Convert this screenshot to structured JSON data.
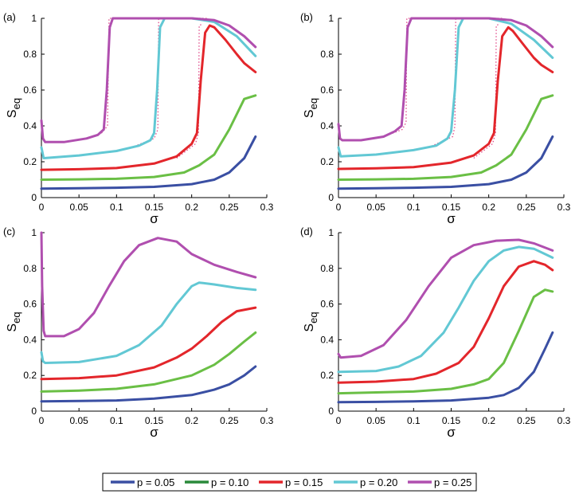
{
  "figure": {
    "colors": {
      "p005": "#3a4fa3",
      "p010": "#6abf45",
      "p015": "#e3262b",
      "p020": "#62c8d4",
      "p025": "#b04faf",
      "legend_p010": "#2a8a3a",
      "dotted": "#e04a8a"
    },
    "legend": [
      {
        "label": "p = 0.05",
        "color": "#3a4fa3"
      },
      {
        "label": "p = 0.10",
        "color": "#2a8a3a"
      },
      {
        "label": "p = 0.15",
        "color": "#e3262b"
      },
      {
        "label": "p = 0.20",
        "color": "#62c8d4"
      },
      {
        "label": "p = 0.25",
        "color": "#b04faf"
      }
    ]
  },
  "chart_data": [
    {
      "panel": "(a)",
      "type": "line",
      "xlabel": "σ",
      "ylabel_main": "S",
      "ylabel_sub": "eq",
      "xlim": [
        0,
        0.3
      ],
      "ylim": [
        0,
        1
      ],
      "xticks": [
        "0",
        "0.05",
        "0.1",
        "0.15",
        "0.2",
        "0.25",
        "0.3"
      ],
      "yticks": [
        "0",
        "0.2",
        "0.4",
        "0.6",
        "0.8",
        "1"
      ],
      "series": [
        {
          "name": "p = 0.05",
          "x": [
            0,
            0.05,
            0.1,
            0.15,
            0.2,
            0.23,
            0.25,
            0.27,
            0.285
          ],
          "y": [
            0.05,
            0.052,
            0.055,
            0.06,
            0.075,
            0.1,
            0.14,
            0.22,
            0.34
          ]
        },
        {
          "name": "p = 0.10",
          "x": [
            0,
            0.05,
            0.1,
            0.15,
            0.19,
            0.21,
            0.23,
            0.25,
            0.27,
            0.285
          ],
          "y": [
            0.1,
            0.102,
            0.105,
            0.115,
            0.14,
            0.18,
            0.24,
            0.38,
            0.55,
            0.57
          ]
        },
        {
          "name": "p = 0.15",
          "x": [
            0,
            0.05,
            0.1,
            0.15,
            0.18,
            0.2,
            0.207,
            0.212,
            0.218,
            0.224,
            0.23,
            0.245,
            0.26,
            0.27,
            0.285
          ],
          "y": [
            0.155,
            0.158,
            0.165,
            0.19,
            0.23,
            0.3,
            0.36,
            0.65,
            0.92,
            0.96,
            0.95,
            0.88,
            0.8,
            0.75,
            0.7
          ]
        },
        {
          "name": "p = 0.20",
          "x": [
            0,
            0.003,
            0.05,
            0.1,
            0.13,
            0.145,
            0.15,
            0.154,
            0.158,
            0.164,
            0.17,
            0.2,
            0.23,
            0.26,
            0.285
          ],
          "y": [
            0.28,
            0.22,
            0.235,
            0.26,
            0.29,
            0.32,
            0.36,
            0.6,
            0.95,
            1.0,
            1.0,
            1.0,
            0.98,
            0.9,
            0.79
          ]
        },
        {
          "name": "p = 0.25",
          "x": [
            0,
            0.002,
            0.005,
            0.03,
            0.06,
            0.075,
            0.083,
            0.087,
            0.091,
            0.095,
            0.1,
            0.15,
            0.2,
            0.23,
            0.25,
            0.27,
            0.285
          ],
          "y": [
            0.43,
            0.33,
            0.31,
            0.31,
            0.33,
            0.35,
            0.38,
            0.6,
            0.95,
            1.0,
            1.0,
            1.0,
            1.0,
            0.99,
            0.96,
            0.9,
            0.84
          ]
        }
      ],
      "dotted": [
        {
          "x": [
            0.06,
            0.08,
            0.088,
            0.09,
            0.1,
            0.15,
            0.2,
            0.22
          ],
          "y": [
            0.33,
            0.36,
            0.4,
            1.0,
            1.0,
            1.0,
            1.0,
            1.0
          ]
        },
        {
          "x": [
            0.12,
            0.15,
            0.155,
            0.156,
            0.165,
            0.2
          ],
          "y": [
            0.28,
            0.33,
            0.38,
            1.0,
            1.0,
            1.0
          ]
        },
        {
          "x": [
            0.18,
            0.205,
            0.209,
            0.21,
            0.215
          ],
          "y": [
            0.22,
            0.3,
            0.36,
            0.96,
            0.97
          ]
        }
      ]
    },
    {
      "panel": "(b)",
      "type": "line",
      "xlabel": "σ",
      "ylabel_main": "S",
      "ylabel_sub": "eq",
      "xlim": [
        0,
        0.3
      ],
      "ylim": [
        0,
        1
      ],
      "xticks": [
        "0",
        "0.05",
        "0.1",
        "0.15",
        "0.2",
        "0.25",
        "0.3"
      ],
      "yticks": [
        "0",
        "0.2",
        "0.4",
        "0.6",
        "0.8",
        "1"
      ],
      "series": [
        {
          "name": "p = 0.05",
          "x": [
            0,
            0.05,
            0.1,
            0.15,
            0.2,
            0.23,
            0.25,
            0.27,
            0.285
          ],
          "y": [
            0.05,
            0.052,
            0.055,
            0.06,
            0.075,
            0.1,
            0.14,
            0.22,
            0.34
          ]
        },
        {
          "name": "p = 0.10",
          "x": [
            0,
            0.05,
            0.1,
            0.15,
            0.19,
            0.21,
            0.23,
            0.25,
            0.27,
            0.285
          ],
          "y": [
            0.1,
            0.102,
            0.105,
            0.115,
            0.14,
            0.18,
            0.24,
            0.38,
            0.55,
            0.57
          ]
        },
        {
          "name": "p = 0.15",
          "x": [
            0,
            0.05,
            0.1,
            0.15,
            0.18,
            0.2,
            0.207,
            0.212,
            0.218,
            0.226,
            0.232,
            0.245,
            0.26,
            0.27,
            0.285
          ],
          "y": [
            0.16,
            0.163,
            0.17,
            0.195,
            0.235,
            0.3,
            0.36,
            0.65,
            0.9,
            0.95,
            0.93,
            0.86,
            0.78,
            0.74,
            0.7
          ]
        },
        {
          "name": "p = 0.20",
          "x": [
            0,
            0.003,
            0.05,
            0.1,
            0.13,
            0.145,
            0.15,
            0.155,
            0.16,
            0.166,
            0.172,
            0.2,
            0.23,
            0.26,
            0.285
          ],
          "y": [
            0.28,
            0.23,
            0.24,
            0.265,
            0.29,
            0.33,
            0.37,
            0.6,
            0.95,
            1.0,
            1.0,
            1.0,
            0.97,
            0.88,
            0.78
          ]
        },
        {
          "name": "p = 0.25",
          "x": [
            0,
            0.002,
            0.005,
            0.03,
            0.06,
            0.075,
            0.084,
            0.088,
            0.092,
            0.097,
            0.1,
            0.15,
            0.2,
            0.23,
            0.25,
            0.27,
            0.285
          ],
          "y": [
            0.41,
            0.33,
            0.32,
            0.32,
            0.34,
            0.37,
            0.4,
            0.6,
            0.95,
            1.0,
            1.0,
            1.0,
            1.0,
            0.99,
            0.96,
            0.9,
            0.84
          ]
        }
      ],
      "dotted": [
        {
          "x": [
            0.06,
            0.085,
            0.09,
            0.091,
            0.1,
            0.15,
            0.2,
            0.22
          ],
          "y": [
            0.34,
            0.38,
            0.42,
            1.0,
            1.0,
            1.0,
            1.0,
            1.0
          ]
        },
        {
          "x": [
            0.12,
            0.152,
            0.155,
            0.156,
            0.17,
            0.2
          ],
          "y": [
            0.28,
            0.34,
            0.4,
            1.0,
            1.0,
            1.0
          ]
        },
        {
          "x": [
            0.18,
            0.205,
            0.209,
            0.21,
            0.215
          ],
          "y": [
            0.22,
            0.3,
            0.36,
            0.96,
            0.97
          ]
        }
      ]
    },
    {
      "panel": "(c)",
      "type": "line",
      "xlabel": "σ",
      "ylabel_main": "S",
      "ylabel_sub": "eq",
      "xlim": [
        0,
        0.3
      ],
      "ylim": [
        0,
        1
      ],
      "xticks": [
        "0",
        "0.05",
        "0.1",
        "0.15",
        "0.2",
        "0.25",
        "0.3"
      ],
      "yticks": [
        "0",
        "0.2",
        "0.4",
        "0.6",
        "0.8",
        "1"
      ],
      "series": [
        {
          "name": "p = 0.05",
          "x": [
            0,
            0.05,
            0.1,
            0.15,
            0.2,
            0.23,
            0.25,
            0.27,
            0.285
          ],
          "y": [
            0.055,
            0.057,
            0.06,
            0.07,
            0.09,
            0.12,
            0.15,
            0.2,
            0.25
          ]
        },
        {
          "name": "p = 0.10",
          "x": [
            0,
            0.05,
            0.1,
            0.15,
            0.2,
            0.23,
            0.25,
            0.27,
            0.285
          ],
          "y": [
            0.11,
            0.115,
            0.125,
            0.15,
            0.2,
            0.26,
            0.32,
            0.39,
            0.44
          ]
        },
        {
          "name": "p = 0.15",
          "x": [
            0,
            0.05,
            0.1,
            0.15,
            0.18,
            0.2,
            0.22,
            0.24,
            0.26,
            0.285
          ],
          "y": [
            0.18,
            0.185,
            0.2,
            0.245,
            0.3,
            0.35,
            0.42,
            0.5,
            0.56,
            0.58
          ]
        },
        {
          "name": "p = 0.20",
          "x": [
            0,
            0.002,
            0.005,
            0.05,
            0.1,
            0.13,
            0.16,
            0.18,
            0.2,
            0.21,
            0.23,
            0.26,
            0.285
          ],
          "y": [
            0.33,
            0.28,
            0.27,
            0.275,
            0.31,
            0.37,
            0.48,
            0.6,
            0.7,
            0.72,
            0.71,
            0.69,
            0.68
          ]
        },
        {
          "name": "p = 0.25",
          "x": [
            0,
            0.001,
            0.003,
            0.005,
            0.03,
            0.05,
            0.07,
            0.09,
            0.11,
            0.13,
            0.155,
            0.18,
            0.2,
            0.23,
            0.26,
            0.285
          ],
          "y": [
            1.0,
            0.7,
            0.45,
            0.42,
            0.42,
            0.46,
            0.55,
            0.7,
            0.84,
            0.93,
            0.97,
            0.95,
            0.88,
            0.82,
            0.78,
            0.75
          ]
        }
      ]
    },
    {
      "panel": "(d)",
      "type": "line",
      "xlabel": "σ",
      "ylabel_main": "S",
      "ylabel_sub": "eq",
      "xlim": [
        0,
        0.3
      ],
      "ylim": [
        0,
        1
      ],
      "xticks": [
        "0",
        "0.05",
        "0.1",
        "0.15",
        "0.2",
        "0.25",
        "0.3"
      ],
      "yticks": [
        "0",
        "0.2",
        "0.4",
        "0.6",
        "0.8",
        "1"
      ],
      "series": [
        {
          "name": "p = 0.05",
          "x": [
            0,
            0.05,
            0.1,
            0.15,
            0.2,
            0.22,
            0.24,
            0.26,
            0.275,
            0.285
          ],
          "y": [
            0.05,
            0.052,
            0.055,
            0.06,
            0.075,
            0.09,
            0.13,
            0.22,
            0.35,
            0.44
          ]
        },
        {
          "name": "p = 0.10",
          "x": [
            0,
            0.05,
            0.1,
            0.15,
            0.18,
            0.2,
            0.22,
            0.24,
            0.26,
            0.275,
            0.285
          ],
          "y": [
            0.1,
            0.105,
            0.11,
            0.125,
            0.15,
            0.18,
            0.27,
            0.45,
            0.64,
            0.68,
            0.67
          ]
        },
        {
          "name": "p = 0.15",
          "x": [
            0,
            0.05,
            0.1,
            0.13,
            0.16,
            0.18,
            0.2,
            0.22,
            0.24,
            0.26,
            0.275,
            0.285
          ],
          "y": [
            0.16,
            0.165,
            0.18,
            0.21,
            0.27,
            0.36,
            0.52,
            0.7,
            0.81,
            0.84,
            0.82,
            0.79
          ]
        },
        {
          "name": "p = 0.20",
          "x": [
            0,
            0.05,
            0.08,
            0.11,
            0.14,
            0.16,
            0.18,
            0.2,
            0.22,
            0.24,
            0.26,
            0.275,
            0.285
          ],
          "y": [
            0.22,
            0.225,
            0.25,
            0.31,
            0.44,
            0.58,
            0.73,
            0.84,
            0.9,
            0.92,
            0.91,
            0.88,
            0.86
          ]
        },
        {
          "name": "p = 0.25",
          "x": [
            0,
            0.003,
            0.03,
            0.06,
            0.09,
            0.12,
            0.15,
            0.18,
            0.21,
            0.24,
            0.26,
            0.285
          ],
          "y": [
            0.32,
            0.3,
            0.31,
            0.37,
            0.51,
            0.7,
            0.86,
            0.93,
            0.955,
            0.96,
            0.94,
            0.9
          ]
        }
      ]
    }
  ]
}
